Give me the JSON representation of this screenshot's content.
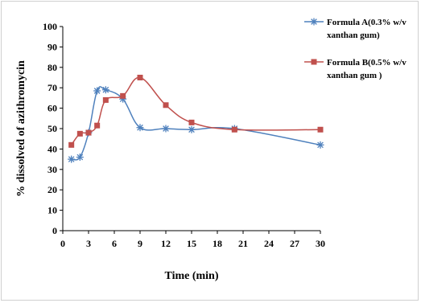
{
  "chart_data": {
    "type": "line",
    "xlabel": "Time (min)",
    "ylabel": "% dissolved of azithromycin",
    "xlim": [
      0,
      30
    ],
    "ylim": [
      0,
      100
    ],
    "x_ticks": [
      "0",
      "3",
      "6",
      "9",
      "12",
      "15",
      "18",
      "21",
      "24",
      "27",
      "30"
    ],
    "y_ticks": [
      "0",
      "10",
      "20",
      "30",
      "40",
      "50",
      "60",
      "70",
      "80",
      "90",
      "100"
    ],
    "grid": false,
    "legend_position": "top-right",
    "series": [
      {
        "name_line1": "Formula A(0.3% w/v",
        "name_line2": "xanthan gum)",
        "marker": "asterisk",
        "color": "#4f81bd",
        "points": [
          [
            1,
            35
          ],
          [
            2,
            36
          ],
          [
            3,
            48
          ],
          [
            4,
            68.5
          ],
          [
            5,
            69
          ],
          [
            7,
            64.5
          ],
          [
            9,
            50.5
          ],
          [
            12,
            50
          ],
          [
            15,
            49.5
          ],
          [
            20,
            50
          ],
          [
            30,
            42
          ]
        ]
      },
      {
        "name_line1": "Formula B(0.5% w/v",
        "name_line2": "xanthan gum )",
        "marker": "square",
        "color": "#c0504d",
        "points": [
          [
            1,
            42
          ],
          [
            2,
            47.5
          ],
          [
            3,
            48
          ],
          [
            4,
            51.5
          ],
          [
            5,
            64
          ],
          [
            7,
            66
          ],
          [
            9,
            75
          ],
          [
            12,
            61.5
          ],
          [
            15,
            53
          ],
          [
            20,
            49.5
          ],
          [
            30,
            49.5
          ]
        ]
      }
    ]
  }
}
